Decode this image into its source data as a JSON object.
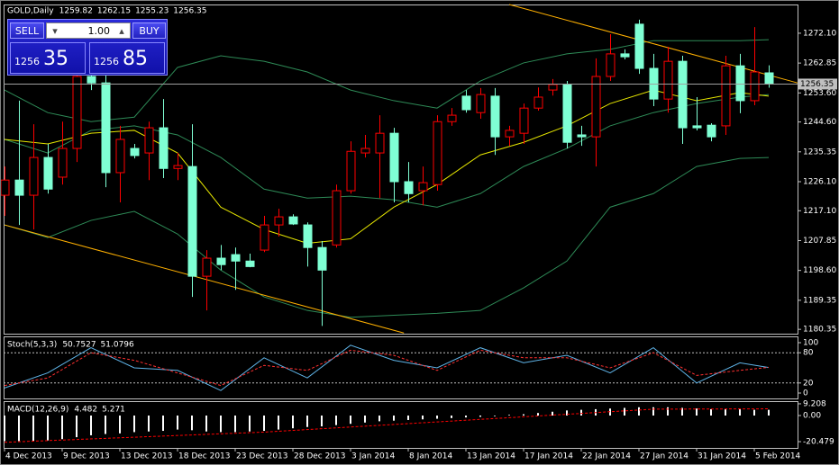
{
  "trade_panel": {
    "sell": "SELL",
    "buy": "BUY",
    "lot": "1.00",
    "bid_big": "1256",
    "bid_pips": "35",
    "ask_big": "1256",
    "ask_pips": "85"
  },
  "chart_data": [
    {
      "type": "candlestick",
      "title": "GOLD,Daily",
      "header_values": [
        1259.82,
        1262.15,
        1255.23,
        1256.35
      ],
      "categories": [
        "4 Dec 2013",
        null,
        null,
        null,
        "9 Dec 2013",
        null,
        null,
        null,
        "13 Dec 2013",
        null,
        null,
        null,
        "18 Dec 2013",
        null,
        null,
        null,
        "23 Dec 2013",
        null,
        null,
        null,
        "28 Dec 2013",
        null,
        null,
        null,
        "3 Jan 2014",
        null,
        null,
        null,
        "8 Jan 2014",
        null,
        null,
        null,
        "13 Jan 2014",
        null,
        null,
        null,
        "17 Jan 2014",
        null,
        null,
        null,
        "22 Jan 2014",
        null,
        null,
        null,
        "27 Jan 2014",
        null,
        null,
        null,
        "31 Jan 2014",
        null,
        null,
        null,
        "5 Feb 2014",
        null
      ],
      "open": [
        1221.9,
        1226.6,
        1221.9,
        1233.6,
        1227.5,
        1236.4,
        1258.7,
        1256.7,
        1228.9,
        1236.4,
        1235.0,
        1242.8,
        1230.2,
        1230.8,
        1196.8,
        1202.4,
        1203.5,
        1201.5,
        1204.9,
        1212.7,
        1215.2,
        1212.7,
        1205.7,
        1206.5,
        1223.3,
        1235.0,
        1235.0,
        1241.1,
        1226.1,
        1223.3,
        1225.2,
        1244.7,
        1252.6,
        1247.5,
        1252.6,
        1240.0,
        1241.1,
        1248.9,
        1254.5,
        1256.2,
        1240.6,
        1240.0,
        1258.7,
        1265.7,
        1274.9,
        1261.2,
        1251.7,
        1263.4,
        1243.4,
        1243.6,
        1243.4,
        1262.0,
        1251.2,
        1259.82
      ],
      "high": [
        1230.8,
        1251.2,
        1243.9,
        1237.8,
        1244.7,
        1269.8,
        1261.5,
        1260.1,
        1243.4,
        1237.8,
        1244.7,
        1251.7,
        1235.0,
        1243.9,
        1204.9,
        1206.5,
        1205.7,
        1203.8,
        1215.5,
        1217.7,
        1216.0,
        1213.5,
        1207.7,
        1225.2,
        1238.6,
        1240.6,
        1246.7,
        1242.8,
        1232.2,
        1230.8,
        1246.7,
        1248.9,
        1254.5,
        1255.1,
        1255.1,
        1243.4,
        1250.3,
        1255.3,
        1257.9,
        1257.3,
        1243.4,
        1264.3,
        1271.8,
        1267.1,
        1276.3,
        1265.7,
        1267.9,
        1265.1,
        1252.3,
        1244.2,
        1265.1,
        1265.7,
        1274.0,
        1262.15
      ],
      "low": [
        1215.5,
        1212.7,
        1211.3,
        1222.4,
        1225.2,
        1232.2,
        1254.5,
        1224.4,
        1219.7,
        1233.3,
        1226.6,
        1227.2,
        1226.6,
        1190.4,
        1186.2,
        1198.7,
        1192.6,
        1199.6,
        1204.3,
        1209.1,
        1212.7,
        1199.8,
        1181.4,
        1205.7,
        1222.4,
        1233.6,
        1221.0,
        1219.7,
        1219.7,
        1218.8,
        1223.3,
        1243.4,
        1247.5,
        1245.6,
        1234.4,
        1237.2,
        1237.8,
        1248.1,
        1252.8,
        1236.4,
        1237.2,
        1230.8,
        1257.3,
        1264.0,
        1259.5,
        1249.5,
        1247.5,
        1237.8,
        1242.0,
        1238.6,
        1240.6,
        1247.3,
        1249.8,
        1255.23
      ],
      "close": [
        1226.6,
        1221.9,
        1233.6,
        1223.8,
        1236.4,
        1258.7,
        1256.7,
        1228.9,
        1239.2,
        1234.2,
        1242.8,
        1230.2,
        1231.1,
        1196.8,
        1202.4,
        1200.4,
        1201.5,
        1199.8,
        1212.7,
        1215.2,
        1213.0,
        1205.7,
        1198.7,
        1223.3,
        1235.5,
        1236.4,
        1241.1,
        1226.1,
        1222.4,
        1225.8,
        1244.7,
        1246.7,
        1248.4,
        1253.1,
        1240.0,
        1242.0,
        1248.9,
        1252.3,
        1256.2,
        1238.3,
        1240.0,
        1258.7,
        1265.7,
        1264.8,
        1261.2,
        1251.7,
        1263.4,
        1242.8,
        1242.8,
        1240.0,
        1262.0,
        1251.2,
        1260.1,
        1256.35
      ],
      "bull_color": "#ff0000",
      "bear_color": "#7fffd4",
      "lines": [
        {
          "color": "#2e8b57",
          "x": [
            0,
            3,
            6,
            9,
            12,
            15,
            18,
            21,
            24,
            27,
            30,
            33,
            36,
            39,
            42,
            45,
            48,
            51,
            53
          ],
          "values": [
            1254.5,
            1247.5,
            1244.7,
            1246.1,
            1261.5,
            1265.1,
            1263.4,
            1260.1,
            1254.5,
            1251.2,
            1248.9,
            1257.3,
            1262.9,
            1265.7,
            1267.1,
            1269.8,
            1269.8,
            1269.8,
            1270.1
          ]
        },
        {
          "color": "#2e8b57",
          "x": [
            0,
            3,
            6,
            9,
            12,
            15,
            18,
            21,
            24,
            27,
            30,
            33,
            36,
            39,
            42,
            45,
            48,
            51,
            53
          ],
          "values": [
            1239.2,
            1235.0,
            1242.0,
            1243.4,
            1240.6,
            1233.6,
            1223.8,
            1221.0,
            1221.6,
            1220.5,
            1218.2,
            1222.4,
            1230.8,
            1236.4,
            1243.4,
            1247.5,
            1250.3,
            1252.3,
            1253.1
          ]
        },
        {
          "color": "#2e8b57",
          "x": [
            0,
            3,
            6,
            9,
            12,
            15,
            18,
            21,
            24,
            27,
            30,
            33,
            36,
            39,
            42,
            45,
            48,
            51,
            53
          ],
          "values": [
            1212.7,
            1208.8,
            1214.1,
            1216.9,
            1209.9,
            1198.7,
            1190.4,
            1186.2,
            1184.1,
            1184.7,
            1185.3,
            1186.2,
            1193.2,
            1201.5,
            1218.2,
            1222.4,
            1230.8,
            1233.3,
            1233.6
          ]
        },
        {
          "color": "#e6e600",
          "x": [
            0,
            3,
            6,
            9,
            12,
            15,
            18,
            21,
            24,
            27,
            30,
            33,
            36,
            39,
            42,
            45,
            48,
            51,
            53
          ],
          "values": [
            1239.2,
            1237.8,
            1241.1,
            1242.0,
            1235.0,
            1218.2,
            1211.3,
            1207.0,
            1208.4,
            1218.2,
            1225.2,
            1234.4,
            1238.3,
            1243.4,
            1250.3,
            1254.5,
            1251.2,
            1253.7,
            1252.6
          ]
        },
        {
          "color": "#ffb000",
          "x": [
            35,
            55
          ],
          "values": [
            1281.0,
            1256.7
          ]
        },
        {
          "color": "#ffb000",
          "x": [
            0,
            27.7
          ],
          "values": [
            1212.7,
            1179.2
          ]
        }
      ],
      "current_price": 1256.35,
      "ylim": [
        1179.0,
        1281.0
      ],
      "yticks": [
        {
          "value": 1272.1,
          "label": "1272.10"
        },
        1262.85,
        {
          "value": 1253.6,
          "label": "1253.60"
        },
        {
          "value": 1244.6,
          "label": "1244.60"
        },
        1235.35,
        {
          "value": 1226.1,
          "label": "1226.10"
        },
        {
          "value": 1217.1,
          "label": "1217.10"
        },
        1207.85,
        {
          "value": 1198.6,
          "label": "1198.60"
        },
        1189.35,
        1180.35
      ]
    },
    {
      "type": "line",
      "title": "Stoch(5,3,3)",
      "header_values": [
        50.7527,
        51.0796
      ],
      "series": [
        {
          "color": "#5fb4e8",
          "x": [
            0,
            3,
            6,
            9,
            12,
            15,
            18,
            21,
            24,
            27,
            30,
            33,
            36,
            39,
            42,
            45,
            48,
            51,
            53
          ],
          "values": [
            10,
            40,
            90,
            50,
            45,
            5,
            70,
            30,
            95,
            65,
            50,
            90,
            60,
            75,
            40,
            90,
            20,
            60,
            50.7527
          ]
        },
        {
          "color": "#ff3030",
          "dashed": true,
          "x": [
            0,
            3,
            6,
            9,
            12,
            15,
            18,
            21,
            24,
            27,
            30,
            33,
            36,
            39,
            42,
            45,
            48,
            51,
            53
          ],
          "values": [
            15,
            30,
            80,
            65,
            40,
            15,
            55,
            45,
            85,
            75,
            45,
            85,
            70,
            70,
            50,
            80,
            35,
            45,
            51.0796
          ]
        }
      ],
      "levels": [
        80,
        20
      ],
      "ylim": [
        -10.7,
        112.5
      ],
      "yticks": [
        100,
        80,
        20,
        0
      ]
    },
    {
      "type": "bar",
      "title": "MACD(12,26,9)",
      "header_values": [
        4.482,
        5.271
      ],
      "values": [
        -20,
        -20,
        -20,
        -19.5,
        -18.5,
        -17,
        -15.5,
        -14.5,
        -14,
        -13,
        -12.5,
        -12,
        -11,
        -11.5,
        -12.5,
        -13,
        -13,
        -12.5,
        -12,
        -11,
        -10,
        -9,
        -8.5,
        -7.5,
        -6.5,
        -5.5,
        -4.5,
        -4,
        -3.5,
        -3,
        -2.5,
        -2,
        -1.5,
        -1,
        -0.5,
        0.5,
        1,
        2,
        3,
        4,
        4.5,
        5,
        5.5,
        6,
        6.5,
        6.5,
        6.5,
        6,
        5.5,
        5,
        5,
        5,
        4.5,
        4.482
      ],
      "color": "#ffffff",
      "signal": {
        "color": "#ff0000",
        "x": [
          0,
          9,
          18,
          27,
          36,
          45,
          53
        ],
        "values": [
          -21,
          -17,
          -13,
          -7,
          -1,
          5,
          5.271
        ]
      },
      "ylim": [
        -25.4,
        11.3
      ],
      "yticks": [
        9.208,
        {
          "value": 0,
          "label": "0.00"
        },
        -20.479
      ]
    }
  ]
}
